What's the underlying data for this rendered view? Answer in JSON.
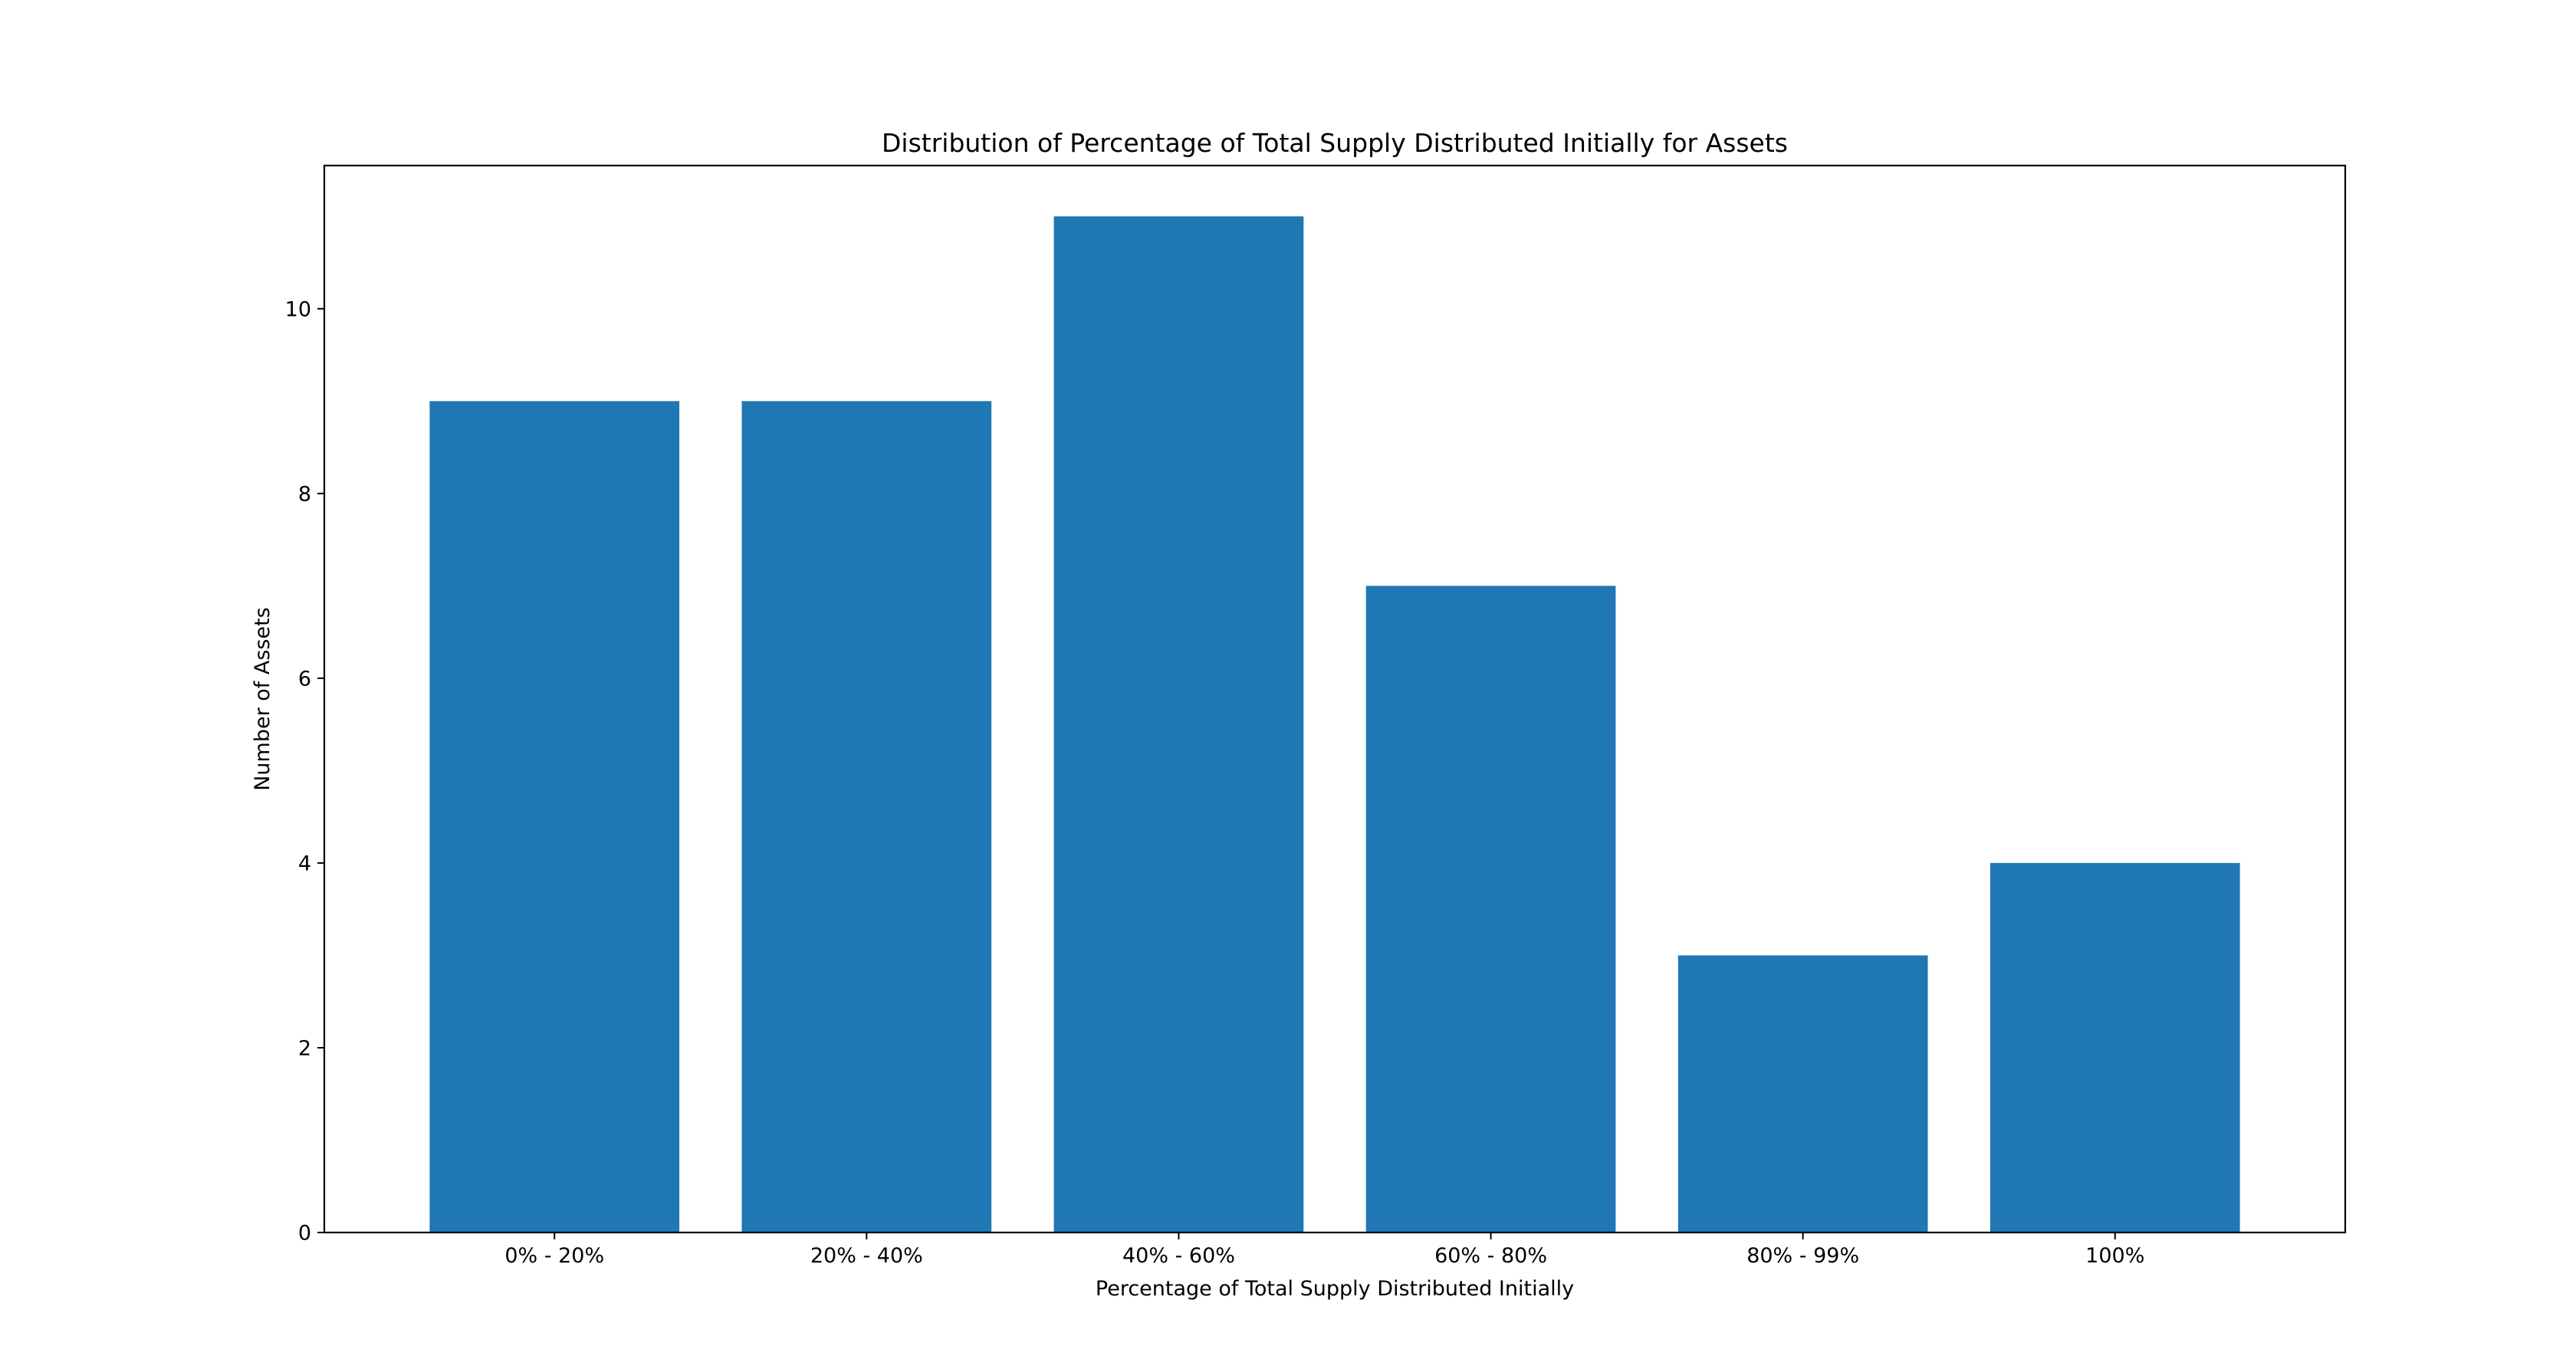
{
  "chart_data": {
    "type": "bar",
    "title": "Distribution of Percentage of Total Supply Distributed Initially for Assets",
    "xlabel": "Percentage of Total Supply Distributed Initially",
    "ylabel": "Number of Assets",
    "categories": [
      "0% - 20%",
      "20% - 40%",
      "40% - 60%",
      "60% - 80%",
      "80% - 99%",
      "100%"
    ],
    "values": [
      9,
      9,
      11,
      7,
      3,
      4
    ],
    "ylim": [
      0,
      11.55
    ],
    "yticks": [
      0,
      2,
      4,
      6,
      8,
      10
    ],
    "ytick_labels": [
      "0",
      "2",
      "4",
      "6",
      "8",
      "10"
    ],
    "grid": false,
    "legend": "none",
    "bar_color": "#1f77b4"
  }
}
